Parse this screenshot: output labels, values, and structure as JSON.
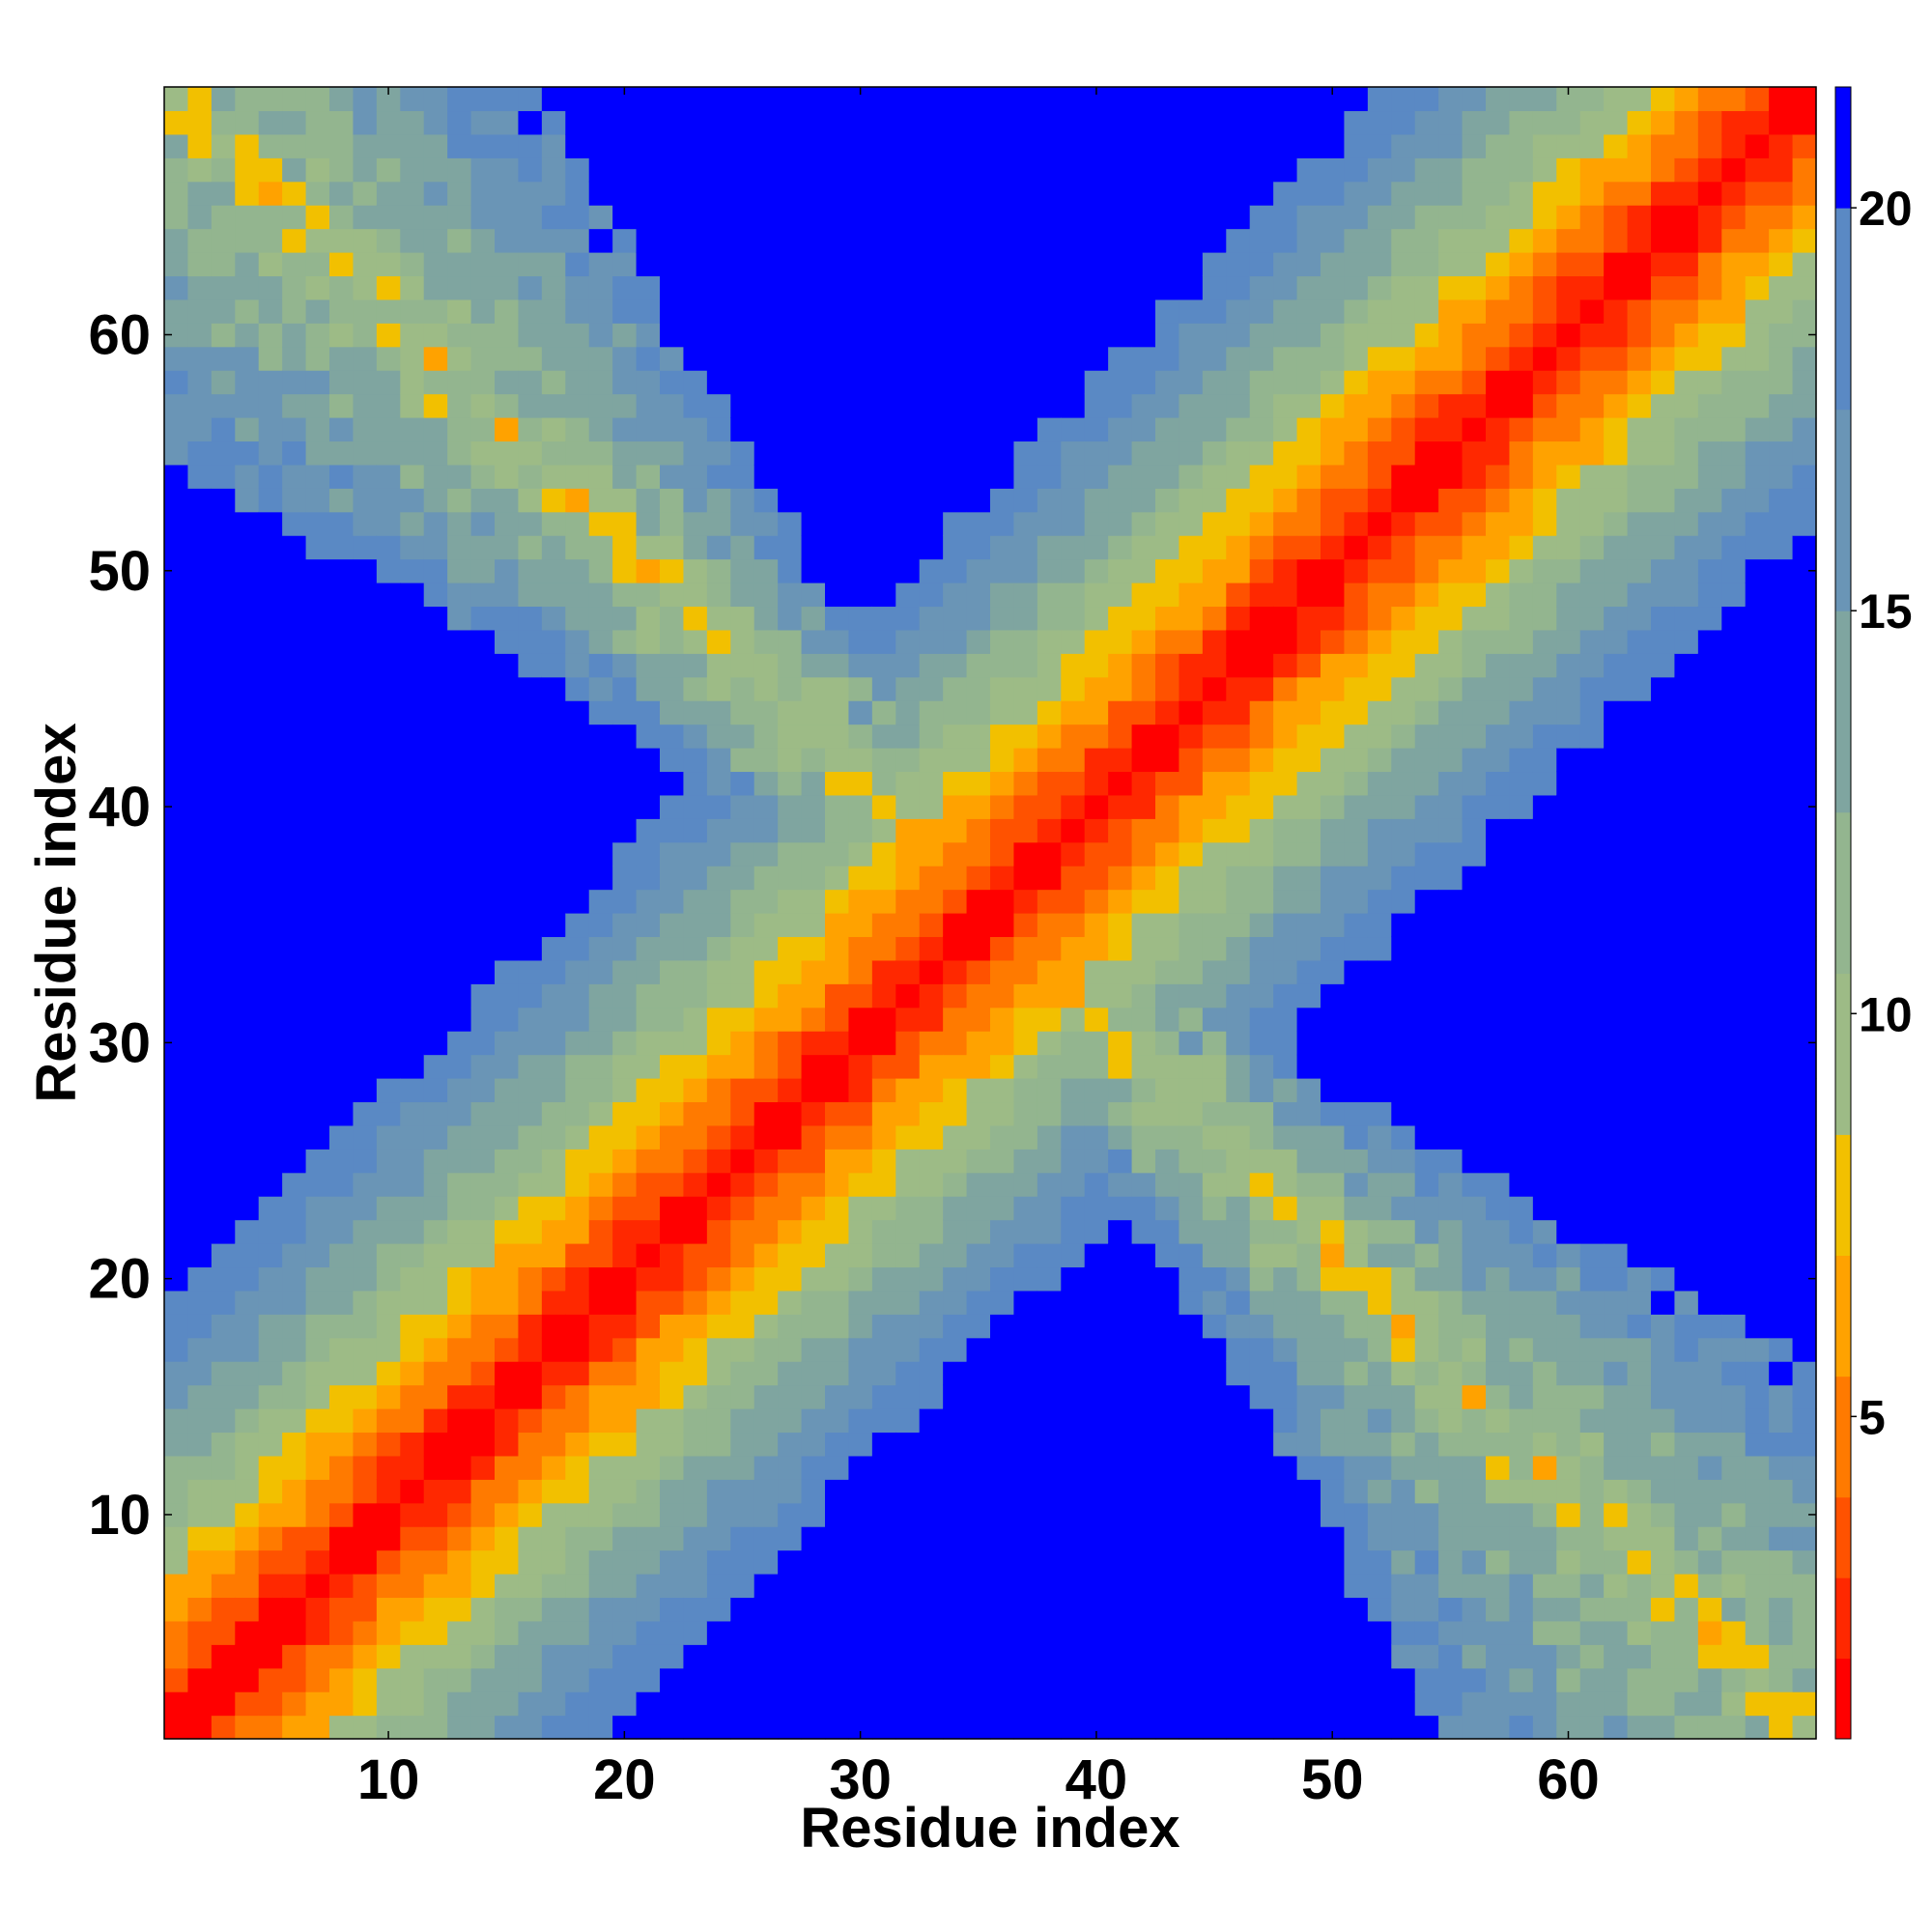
{
  "chart_data": {
    "type": "heatmap",
    "title": "",
    "xlabel": "Residue index",
    "ylabel": "Residue index",
    "n_residues": 70,
    "xlim": [
      0.5,
      70.5
    ],
    "ylim": [
      0.5,
      70.5
    ],
    "x_ticks": [
      10,
      20,
      30,
      40,
      50,
      60
    ],
    "y_ticks": [
      10,
      20,
      30,
      40,
      50,
      60
    ],
    "grid": false,
    "colorbar": {
      "position": "right",
      "range": [
        1,
        21.5
      ],
      "ticks": [
        5,
        10,
        15,
        20
      ],
      "levels": [
        {
          "max": 2,
          "color": "#ff0000"
        },
        {
          "max": 3,
          "color": "#ff2800"
        },
        {
          "max": 4,
          "color": "#ff5200"
        },
        {
          "max": 5.5,
          "color": "#ff7a00"
        },
        {
          "max": 7,
          "color": "#ffa200"
        },
        {
          "max": 8.5,
          "color": "#f2c000"
        },
        {
          "max": 10.5,
          "color": "#9dbb86"
        },
        {
          "max": 12.5,
          "color": "#93b58f"
        },
        {
          "max": 15,
          "color": "#7fa5a0"
        },
        {
          "max": 17.5,
          "color": "#6a95b6"
        },
        {
          "max": 20,
          "color": "#5a89c4"
        },
        {
          "max": 999,
          "color": "#0000ff"
        }
      ]
    },
    "description": "Symmetric residue-residue distance map with a red main diagonal and a lighter anti-diagonal contact band forming an X pattern; far cells are blue (>20)."
  }
}
